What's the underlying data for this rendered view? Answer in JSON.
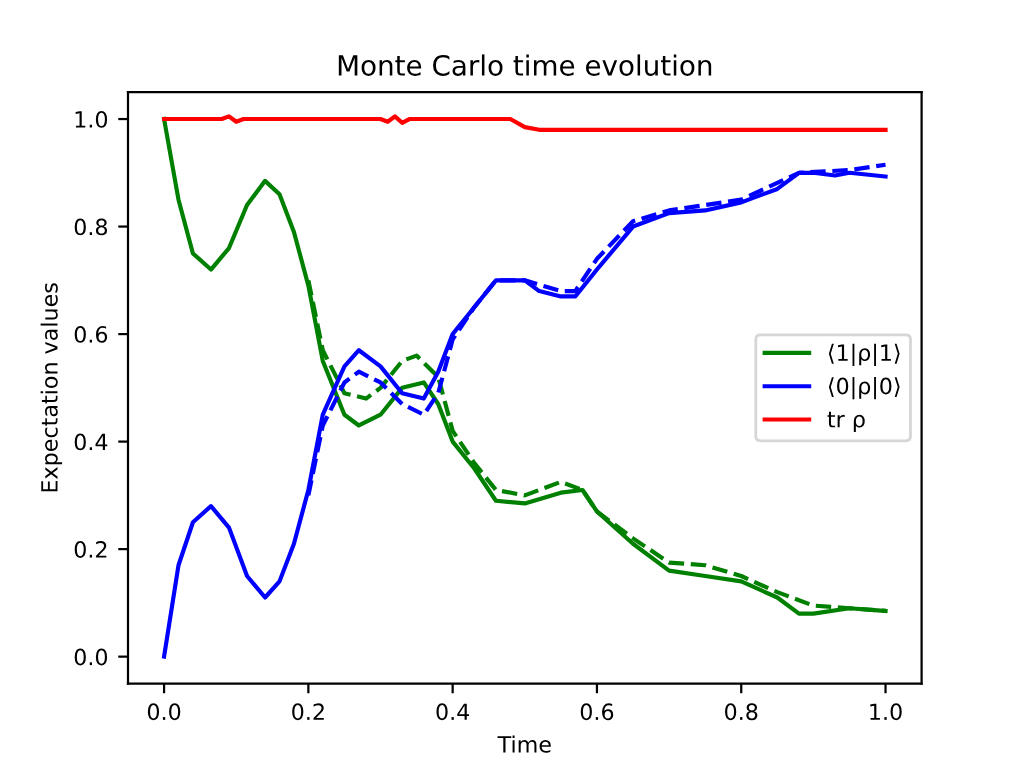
{
  "chart_data": {
    "type": "line",
    "title": "Monte Carlo time evolution",
    "xlabel": "Time",
    "ylabel": "Expectation values",
    "xlim": [
      -0.05,
      1.05
    ],
    "ylim": [
      -0.05,
      1.05
    ],
    "xticks": [
      {
        "value": 0,
        "label": "0.0"
      },
      {
        "value": 0.2,
        "label": "0.2"
      },
      {
        "value": 0.4,
        "label": "0.4"
      },
      {
        "value": 0.6,
        "label": "0.6"
      },
      {
        "value": 0.8,
        "label": "0.8"
      },
      {
        "value": 1.0,
        "label": "1.0"
      }
    ],
    "yticks": [
      {
        "value": 0,
        "label": "0.0"
      },
      {
        "value": 0.2,
        "label": "0.2"
      },
      {
        "value": 0.4,
        "label": "0.4"
      },
      {
        "value": 0.6,
        "label": "0.6"
      },
      {
        "value": 0.8,
        "label": "0.8"
      },
      {
        "value": 1.0,
        "label": "1.0"
      }
    ],
    "grid": false,
    "legend": "center right",
    "marker": "none",
    "series": [
      {
        "name": "⟨1|ρ|1⟩",
        "color": "#008000",
        "line_style": "solid",
        "x": [
          0,
          0.02,
          0.04,
          0.065,
          0.09,
          0.115,
          0.14,
          0.16,
          0.18,
          0.2,
          0.22,
          0.25,
          0.27,
          0.3,
          0.33,
          0.36,
          0.38,
          0.4,
          0.43,
          0.46,
          0.5,
          0.55,
          0.58,
          0.6,
          0.65,
          0.7,
          0.75,
          0.8,
          0.85,
          0.88,
          0.9,
          0.95,
          1.0
        ],
        "values": [
          1.0,
          0.85,
          0.75,
          0.72,
          0.76,
          0.84,
          0.885,
          0.86,
          0.79,
          0.69,
          0.55,
          0.45,
          0.43,
          0.45,
          0.5,
          0.51,
          0.47,
          0.4,
          0.35,
          0.29,
          0.285,
          0.305,
          0.31,
          0.27,
          0.21,
          0.16,
          0.15,
          0.14,
          0.11,
          0.08,
          0.08,
          0.09,
          0.085
        ]
      },
      {
        "color": "#008000",
        "line_style": "dashed",
        "x": [
          0.2,
          0.22,
          0.25,
          0.28,
          0.3,
          0.33,
          0.35,
          0.38,
          0.4,
          0.43,
          0.46,
          0.5,
          0.55,
          0.58,
          0.6,
          0.65,
          0.7,
          0.75,
          0.8,
          0.85,
          0.9,
          0.95,
          1.0
        ],
        "values": [
          0.7,
          0.57,
          0.49,
          0.48,
          0.5,
          0.55,
          0.56,
          0.52,
          0.42,
          0.36,
          0.31,
          0.3,
          0.325,
          0.31,
          0.27,
          0.22,
          0.175,
          0.17,
          0.15,
          0.12,
          0.095,
          0.09,
          0.085
        ]
      },
      {
        "name": "⟨0|ρ|0⟩",
        "color": "#0000ff",
        "line_style": "solid",
        "x": [
          0,
          0.02,
          0.04,
          0.065,
          0.09,
          0.115,
          0.14,
          0.16,
          0.18,
          0.2,
          0.22,
          0.25,
          0.27,
          0.3,
          0.33,
          0.36,
          0.38,
          0.4,
          0.43,
          0.46,
          0.5,
          0.52,
          0.55,
          0.57,
          0.6,
          0.65,
          0.7,
          0.75,
          0.8,
          0.85,
          0.88,
          0.9,
          0.93,
          0.95,
          1.0
        ],
        "values": [
          0.0,
          0.17,
          0.25,
          0.28,
          0.24,
          0.15,
          0.11,
          0.14,
          0.21,
          0.31,
          0.45,
          0.54,
          0.57,
          0.54,
          0.49,
          0.48,
          0.53,
          0.6,
          0.65,
          0.7,
          0.7,
          0.68,
          0.67,
          0.67,
          0.72,
          0.8,
          0.825,
          0.83,
          0.845,
          0.87,
          0.9,
          0.9,
          0.895,
          0.9,
          0.893
        ]
      },
      {
        "color": "#0000ff",
        "line_style": "dashed",
        "x": [
          0.2,
          0.22,
          0.25,
          0.27,
          0.3,
          0.33,
          0.36,
          0.38,
          0.4,
          0.43,
          0.46,
          0.5,
          0.55,
          0.57,
          0.6,
          0.65,
          0.7,
          0.8,
          0.88,
          0.95,
          1.0
        ],
        "values": [
          0.3,
          0.43,
          0.51,
          0.53,
          0.51,
          0.47,
          0.45,
          0.49,
          0.59,
          0.65,
          0.7,
          0.7,
          0.68,
          0.68,
          0.74,
          0.81,
          0.83,
          0.85,
          0.9,
          0.905,
          0.915
        ]
      },
      {
        "name": "tr ρ",
        "color": "#ff0000",
        "line_style": "solid",
        "x": [
          0,
          0.08,
          0.09,
          0.1,
          0.11,
          0.12,
          0.3,
          0.31,
          0.32,
          0.33,
          0.34,
          0.48,
          0.5,
          0.52,
          1.0
        ],
        "values": [
          1.0,
          1.0,
          1.005,
          0.995,
          1.0,
          1.0,
          1.0,
          0.995,
          1.005,
          0.993,
          1.0,
          1.0,
          0.985,
          0.98,
          0.98
        ]
      }
    ]
  }
}
